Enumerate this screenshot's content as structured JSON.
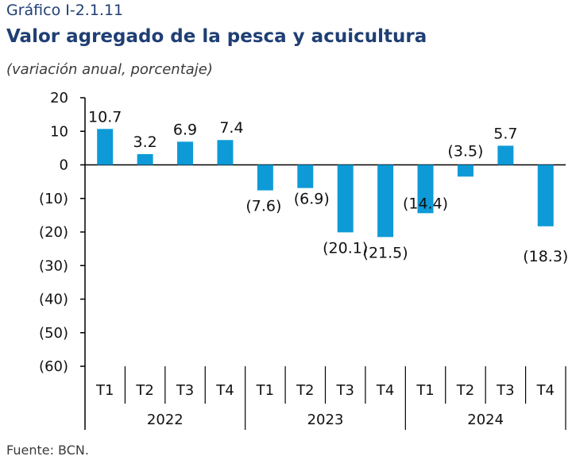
{
  "header": {
    "figure_label": "Gráfico I-2.1.11",
    "title": "Valor agregado de la pesca y acuicultura",
    "subtitle": "(variación anual, porcentaje)"
  },
  "footer": {
    "source": "Fuente: BCN."
  },
  "colors": {
    "bar": "#0e9ad7",
    "axis": "#000000",
    "title": "#1f3f74"
  },
  "chart_data": {
    "type": "bar",
    "categories": [
      "T1",
      "T2",
      "T3",
      "T4",
      "T1",
      "T2",
      "T3",
      "T4",
      "T1",
      "T2",
      "T3",
      "T4"
    ],
    "groups": [
      {
        "label": "2022",
        "span": 4
      },
      {
        "label": "2023",
        "span": 4
      },
      {
        "label": "2024",
        "span": 4
      }
    ],
    "series": [
      {
        "values": [
          10.7,
          3.2,
          6.9,
          7.4,
          -7.6,
          -6.9,
          -20.1,
          -21.5,
          -14.4,
          -3.5,
          5.7,
          -18.3
        ]
      }
    ],
    "data_labels": [
      "10.7",
      "3.2",
      "6.9",
      "7.4",
      "(7.6)",
      "(6.9)",
      "(20.1)",
      "(21.5)",
      "(14.4)",
      "(3.5)",
      "5.7",
      "(18.3)"
    ],
    "y_ticks": [
      20,
      10,
      0,
      -10,
      -20,
      -30,
      -40,
      -50,
      -60
    ],
    "y_tick_labels": [
      "20",
      "10",
      "0",
      "(10)",
      "(20)",
      "(30)",
      "(40)",
      "(50)",
      "(60)"
    ],
    "ylim": [
      -60,
      20
    ],
    "grid": false,
    "legend": "none",
    "title": "",
    "xlabel": "",
    "ylabel": ""
  }
}
